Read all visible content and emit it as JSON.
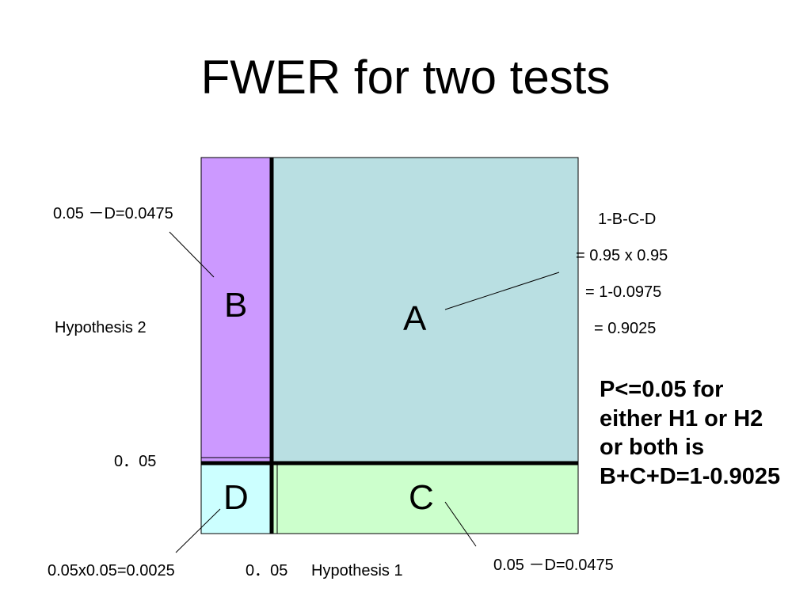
{
  "title": "FWER for two tests",
  "regions": {
    "a": "A",
    "b": "B",
    "c": "C",
    "d": "D"
  },
  "labels": {
    "b_annotation": "0.05 －D=0.0475",
    "c_annotation": "0.05 －D=0.0475",
    "d_annotation": "0.05x0.05=0.0025",
    "hypothesis_2": "Hypothesis 2",
    "hypothesis_1": "Hypothesis 1",
    "y_tick": "0．05",
    "x_tick": "0．05"
  },
  "a_calculation": [
    "1-B-C-D",
    "= 0.95 x 0.95",
    "= 1-0.0975",
    "= 0.9025"
  ],
  "summary": "P<=0.05 for either H1 or H2 or both is B+C+D=1-0.9025",
  "colors": {
    "region_a": "#b9dfe2",
    "region_b": "#cc99ff",
    "region_c": "#ccffcc",
    "region_d": "#ccffff"
  }
}
